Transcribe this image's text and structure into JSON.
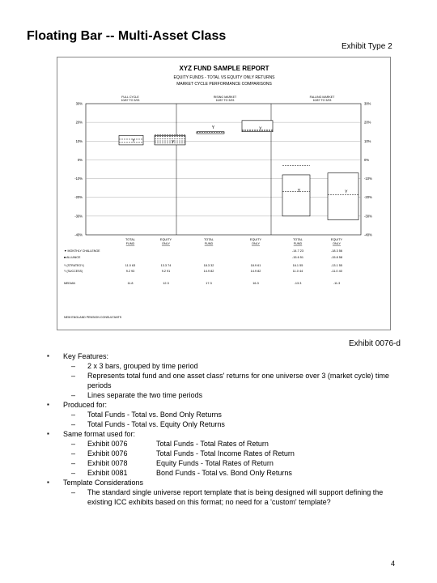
{
  "slide": {
    "title": "Floating Bar -- Multi-Asset Class",
    "exhibit_type": "Exhibit Type 2",
    "exhibit_number": "Exhibit 0076-d",
    "page_number": "4"
  },
  "report": {
    "title": "XYZ FUND SAMPLE REPORT",
    "subtitle1": "EQUITY FUNDS - TOTAL VS EQUITY ONLY RETURNS",
    "subtitle2": "MARKET CYCLE PERFORMANCE COMPARISONS",
    "periods": [
      {
        "name": "FULL CYCLE",
        "dates": "10/87 TO 3/93"
      },
      {
        "name": "RISING MARKET",
        "dates": "10/87 TO 3/93"
      },
      {
        "name": "FALLING MARKET",
        "dates": "10/87 TO 3/93"
      }
    ],
    "source": "NEW ENGLAND PENSION CONSULTANTS"
  },
  "chart_data": {
    "type": "floating_bar",
    "ylim": [
      -40,
      30
    ],
    "yticks": [
      "30%",
      "20%",
      "10%",
      "0%",
      "-10%",
      "-20%",
      "-30%",
      "-40%"
    ],
    "groups": [
      {
        "period": "FULL CYCLE",
        "bars": [
          {
            "label": "TOTAL FUND",
            "high": 13,
            "low": 8,
            "lines": [
              11.0,
              9.3
            ],
            "marker": "Y",
            "marker_value": 10.3
          },
          {
            "label": "EQUITY ONLY",
            "high": 13,
            "low": 8,
            "lines": [
              13.3,
              12.5,
              11.2,
              10.1,
              9.0
            ],
            "marker": "Y",
            "marker_value": 9.6
          }
        ]
      },
      {
        "period": "RISING MARKET",
        "bars": [
          {
            "label": "TOTAL FUND",
            "high": 15,
            "low": 14,
            "lines": [
              14.6
            ],
            "marker": "Y",
            "marker_value": 17.4
          },
          {
            "label": "EQUITY ONLY",
            "high": 21,
            "low": 15,
            "lines": [
              15.5,
              16.1
            ],
            "marker": "Y",
            "marker_value": 16.8
          }
        ]
      },
      {
        "period": "FALLING MARKET",
        "bars": [
          {
            "label": "TOTAL FUND",
            "high": -8,
            "low": -30,
            "lines": [
              -3.0,
              -16.8
            ],
            "marker": "Y",
            "marker_value": -16.2
          },
          {
            "label": "EQUITY ONLY",
            "high": -7,
            "low": -32,
            "lines": [
              -18.7
            ],
            "marker": "Y",
            "marker_value": -16.9
          }
        ]
      }
    ],
    "table": {
      "headers": [
        [
          "TOTAL",
          "FUND"
        ],
        [
          "EQUITY",
          "ONLY"
        ],
        [
          "TOTAL",
          "FUND"
        ],
        [
          "EQUITY",
          "ONLY"
        ],
        [
          "TOTAL",
          "FUND"
        ],
        [
          "EQUITY",
          "ONLY"
        ]
      ],
      "rows": [
        {
          "label": "▼ MONTHLY CHALLENGE",
          "values": [
            "",
            "",
            "",
            "",
            "-14.7   23",
            "-18.3   56"
          ]
        },
        {
          "label": "■ ALLIANCE",
          "values": [
            "",
            "",
            "",
            "",
            "-15.6   51",
            "-15.8   58"
          ]
        },
        {
          "label": "Y (STRATEGY)",
          "values": [
            "11.0   63",
            "13.3   74",
            "18.3   32",
            "18.9   61",
            "16.1   55",
            "-13.1   55"
          ]
        },
        {
          "label": "Y (SUCCESS)",
          "values": [
            "9.2   93",
            "9.2   91",
            "14.9   82",
            "14.9   82",
            "11.0   44",
            "-11.0   40"
          ]
        },
        {
          "label": "MEDIAN",
          "values": [
            "11.8",
            "12.3",
            "17.3",
            "16.3",
            "-13.3",
            "-11.3"
          ]
        }
      ]
    }
  },
  "bullets": [
    {
      "text": "Key Features:",
      "sub": [
        {
          "text": "2 x 3 bars, grouped by time period"
        },
        {
          "text": "Represents total fund and one asset class' returns for one universe over 3 (market cycle) time periods"
        },
        {
          "text": "Lines separate the two time periods"
        }
      ]
    },
    {
      "text": "Produced for:",
      "sub": [
        {
          "text": "Total Funds - Total vs. Bond Only Returns"
        },
        {
          "text": "Total Funds - Total vs. Equity Only Returns"
        }
      ]
    },
    {
      "text": "Same format used for:",
      "sub": [
        {
          "exhibit": "Exhibit 0076",
          "text": "Total Funds - Total Rates of Return"
        },
        {
          "exhibit": "Exhibit 0076",
          "text": "Total Funds - Total Income Rates of Return"
        },
        {
          "exhibit": "Exhibit 0078",
          "text": "Equity Funds - Total Rates of Return"
        },
        {
          "exhibit": "Exhibit 0081",
          "text": "Bond Funds - Total vs. Bond Only Returns"
        }
      ]
    },
    {
      "text": "Template Considerations",
      "sub": [
        {
          "text": "The standard single universe report template that is being designed will support defining the existing ICC exhibits based on this format; no need for a 'custom' template?"
        }
      ]
    }
  ],
  "symbols": {
    "bullet": "▪",
    "dash": "–"
  }
}
